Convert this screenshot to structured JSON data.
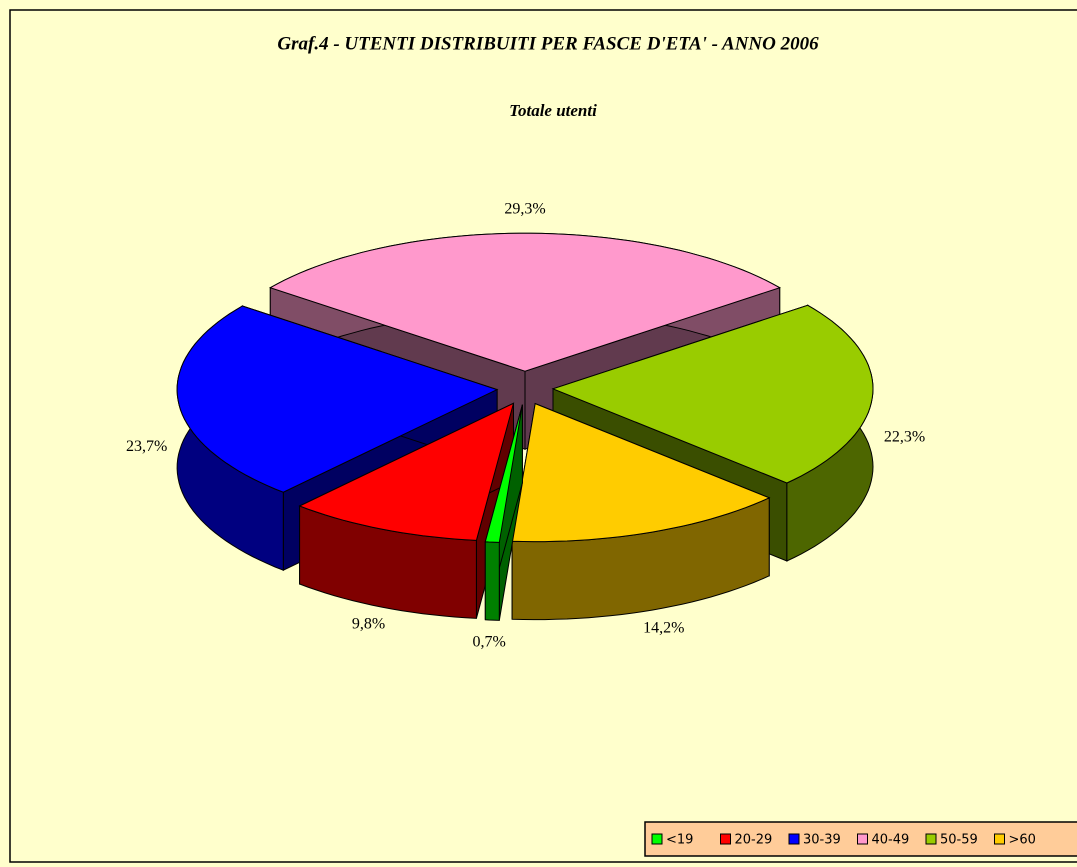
{
  "chart_data": {
    "type": "pie",
    "title": "Graf.4 - UTENTI DISTRIBUITI PER FASCE D'ETA' - ANNO 2006",
    "subtitle": "Totale utenti",
    "categories": [
      "<19",
      "20-29",
      "30-39",
      "40-49",
      "50-59",
      ">60"
    ],
    "values": [
      0.7,
      9.8,
      23.7,
      29.3,
      22.3,
      14.2
    ],
    "value_labels": [
      "0,7%",
      "9,8%",
      "23,7%",
      "29,3%",
      "22,3%",
      "14,2%"
    ],
    "colors": [
      "#00ff00",
      "#ff0000",
      "#0000ff",
      "#ff99cc",
      "#99cc00",
      "#ffcc00"
    ],
    "legend": "bottom-right"
  }
}
